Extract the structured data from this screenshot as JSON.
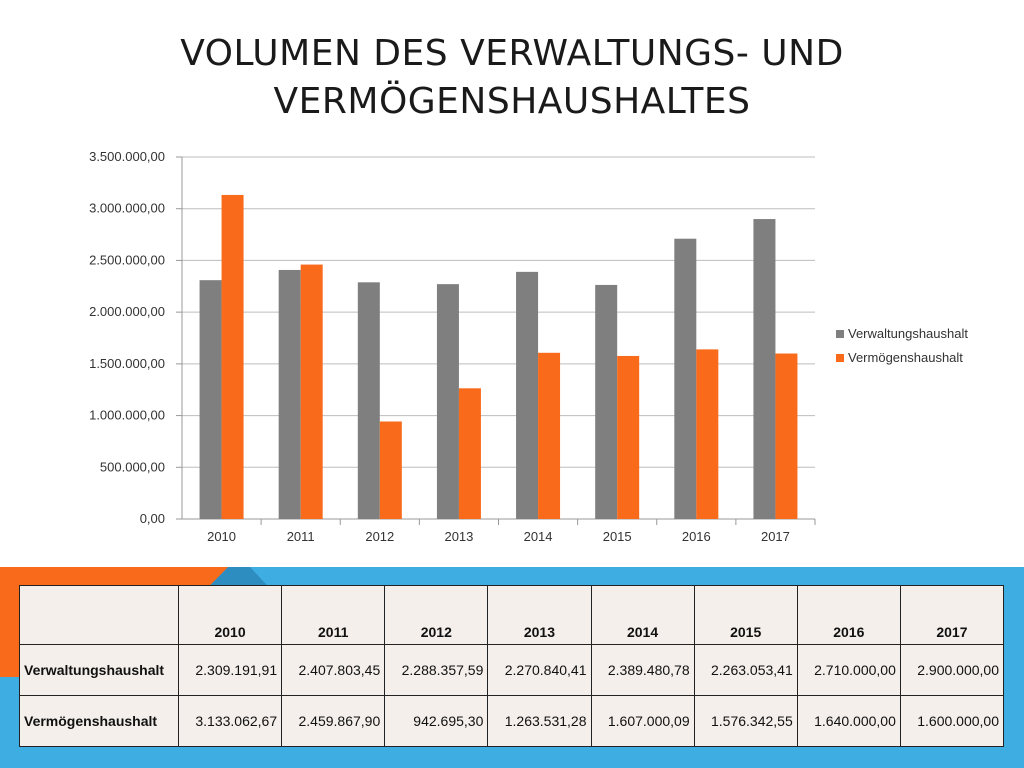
{
  "slide": {
    "title_line1": "VOLUMEN DES VERWALTUNGS- UND",
    "title_line2": "VERMÖGENSHAUSHALTES"
  },
  "colors": {
    "series_gray": "#7f7f7f",
    "series_orange": "#f96a1b",
    "band_blue": "#3eaee2",
    "band_orange": "#f96a1b",
    "band_dark_blue": "#2e8dc0",
    "table_bg": "#f4efea"
  },
  "chart_data": {
    "type": "bar",
    "categories": [
      "2010",
      "2011",
      "2012",
      "2013",
      "2014",
      "2015",
      "2016",
      "2017"
    ],
    "series": [
      {
        "name": "Verwaltungshaushalt",
        "color": "#7f7f7f",
        "values": [
          2309191.91,
          2407803.45,
          2288357.59,
          2270840.41,
          2389480.78,
          2263053.41,
          2710000.0,
          2900000.0
        ]
      },
      {
        "name": "Vermögenshaushalt",
        "color": "#f96a1b",
        "values": [
          3133062.67,
          2459867.9,
          942695.3,
          1263531.28,
          1607000.09,
          1576342.55,
          1640000.0,
          1600000.0
        ]
      }
    ],
    "ylim": [
      0,
      3500000
    ],
    "yticks": [
      0,
      500000,
      1000000,
      1500000,
      2000000,
      2500000,
      3000000,
      3500000
    ],
    "ytick_labels": [
      "0,00",
      "500.000,00",
      "1.000.000,00",
      "1.500.000,00",
      "2.000.000,00",
      "2.500.000,00",
      "3.000.000,00",
      "3.500.000,00"
    ],
    "grid": true,
    "legend_position": "right"
  },
  "table": {
    "header": [
      "",
      "2010",
      "2011",
      "2012",
      "2013",
      "2014",
      "2015",
      "2016",
      "2017"
    ],
    "rows": [
      [
        "Verwaltungshaushalt",
        "2.309.191,91",
        "2.407.803,45",
        "2.288.357,59",
        "2.270.840,41",
        "2.389.480,78",
        "2.263.053,41",
        "2.710.000,00",
        "2.900.000,00"
      ],
      [
        "Vermögenshaushalt",
        "3.133.062,67",
        "2.459.867,90",
        "942.695,30",
        "1.263.531,28",
        "1.607.000,09",
        "1.576.342,55",
        "1.640.000,00",
        "1.600.000,00"
      ]
    ]
  }
}
